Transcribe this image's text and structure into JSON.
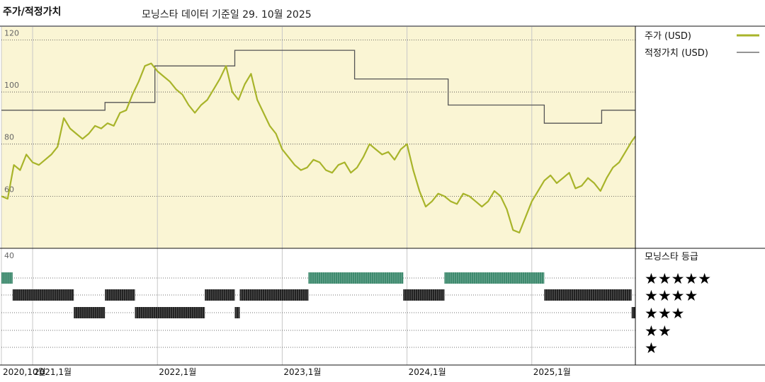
{
  "header": {
    "title": "주가/적정가치",
    "subtitle": "모닝스타 데이터 기준일 29. 10월 2025"
  },
  "colors": {
    "panel_bg": "#faf5d4",
    "price": "#a8b42a",
    "fair_value": "#555555",
    "rating_5": "#3e8a6e",
    "rating_other": "#222222"
  },
  "chart_data": {
    "type": "line",
    "ylim": [
      40,
      125
    ],
    "y_ticks": [
      "120",
      "100",
      "80",
      "60",
      "40"
    ],
    "y_tick_values": [
      120,
      100,
      80,
      60,
      40
    ],
    "x_ticks": [
      {
        "label": "2020,10월",
        "x": 2020.75
      },
      {
        "label": "2021,1월",
        "x": 2021.0
      },
      {
        "label": "2022,1월",
        "x": 2022.0
      },
      {
        "label": "2023,1월",
        "x": 2023.0
      },
      {
        "label": "2024,1월",
        "x": 2024.0
      },
      {
        "label": "2025,1월",
        "x": 2025.0
      }
    ],
    "xlim": [
      2020.75,
      2025.83
    ],
    "legend": [
      {
        "key": "price",
        "label": "주가 (USD)"
      },
      {
        "key": "fair_value",
        "label": "적정가치 (USD)"
      }
    ],
    "fair_value": {
      "x": [
        2020.75,
        2021.58,
        2021.58,
        2021.98,
        2021.98,
        2022.62,
        2022.62,
        2023.58,
        2023.58,
        2024.33,
        2024.33,
        2025.1,
        2025.1,
        2025.56,
        2025.56,
        2025.83
      ],
      "y": [
        93,
        93,
        96,
        96,
        110,
        110,
        116,
        116,
        105,
        105,
        95,
        95,
        88,
        88,
        93,
        93
      ]
    },
    "price": {
      "x": [
        2020.75,
        2020.8,
        2020.85,
        2020.9,
        2020.95,
        2021.0,
        2021.05,
        2021.1,
        2021.15,
        2021.2,
        2021.25,
        2021.3,
        2021.35,
        2021.4,
        2021.45,
        2021.5,
        2021.55,
        2021.6,
        2021.65,
        2021.7,
        2021.75,
        2021.8,
        2021.85,
        2021.9,
        2021.95,
        2022.0,
        2022.05,
        2022.1,
        2022.15,
        2022.2,
        2022.25,
        2022.3,
        2022.35,
        2022.4,
        2022.45,
        2022.5,
        2022.55,
        2022.6,
        2022.65,
        2022.7,
        2022.75,
        2022.8,
        2022.85,
        2022.9,
        2022.95,
        2023.0,
        2023.05,
        2023.1,
        2023.15,
        2023.2,
        2023.25,
        2023.3,
        2023.35,
        2023.4,
        2023.45,
        2023.5,
        2023.55,
        2023.6,
        2023.65,
        2023.7,
        2023.75,
        2023.8,
        2023.85,
        2023.9,
        2023.95,
        2024.0,
        2024.05,
        2024.1,
        2024.15,
        2024.2,
        2024.25,
        2024.3,
        2024.35,
        2024.4,
        2024.45,
        2024.5,
        2024.55,
        2024.6,
        2024.65,
        2024.7,
        2024.75,
        2024.8,
        2024.85,
        2024.9,
        2024.95,
        2025.0,
        2025.05,
        2025.1,
        2025.15,
        2025.2,
        2025.25,
        2025.3,
        2025.35,
        2025.4,
        2025.45,
        2025.5,
        2025.55,
        2025.6,
        2025.65,
        2025.7,
        2025.75,
        2025.8,
        2025.83
      ],
      "y": [
        60,
        59,
        72,
        70,
        76,
        73,
        72,
        74,
        76,
        79,
        90,
        86,
        84,
        82,
        84,
        87,
        86,
        88,
        87,
        92,
        93,
        99,
        104,
        110,
        111,
        108,
        106,
        104,
        101,
        99,
        95,
        92,
        95,
        97,
        101,
        105,
        110,
        100,
        97,
        103,
        107,
        97,
        92,
        87,
        84,
        78,
        75,
        72,
        70,
        71,
        74,
        73,
        70,
        69,
        72,
        73,
        69,
        71,
        75,
        80,
        78,
        76,
        77,
        74,
        78,
        80,
        70,
        62,
        56,
        58,
        61,
        60,
        58,
        57,
        61,
        60,
        58,
        56,
        58,
        62,
        60,
        55,
        47,
        46,
        52,
        58,
        62,
        66,
        68,
        65,
        67,
        69,
        63,
        64,
        67,
        65,
        62,
        67,
        71,
        73,
        77,
        81,
        83
      ]
    },
    "rating_series_name": "모닝스타 등급",
    "rating_labels": [
      "★★★★★",
      "★★★★",
      "★★★",
      "★★",
      "★"
    ],
    "ratings": [
      {
        "x0": 2020.75,
        "x1": 2020.84,
        "stars": 5
      },
      {
        "x0": 2020.84,
        "x1": 2021.33,
        "stars": 4
      },
      {
        "x0": 2021.33,
        "x1": 2021.58,
        "stars": 3
      },
      {
        "x0": 2021.58,
        "x1": 2021.82,
        "stars": 4
      },
      {
        "x0": 2021.82,
        "x1": 2022.38,
        "stars": 3
      },
      {
        "x0": 2022.38,
        "x1": 2022.62,
        "stars": 4
      },
      {
        "x0": 2022.62,
        "x1": 2022.66,
        "stars": 3
      },
      {
        "x0": 2022.66,
        "x1": 2023.21,
        "stars": 4
      },
      {
        "x0": 2023.21,
        "x1": 2023.97,
        "stars": 5
      },
      {
        "x0": 2023.97,
        "x1": 2024.3,
        "stars": 4
      },
      {
        "x0": 2024.3,
        "x1": 2025.1,
        "stars": 5
      },
      {
        "x0": 2025.1,
        "x1": 2025.8,
        "stars": 4
      },
      {
        "x0": 2025.8,
        "x1": 2025.83,
        "stars": 3
      }
    ]
  }
}
